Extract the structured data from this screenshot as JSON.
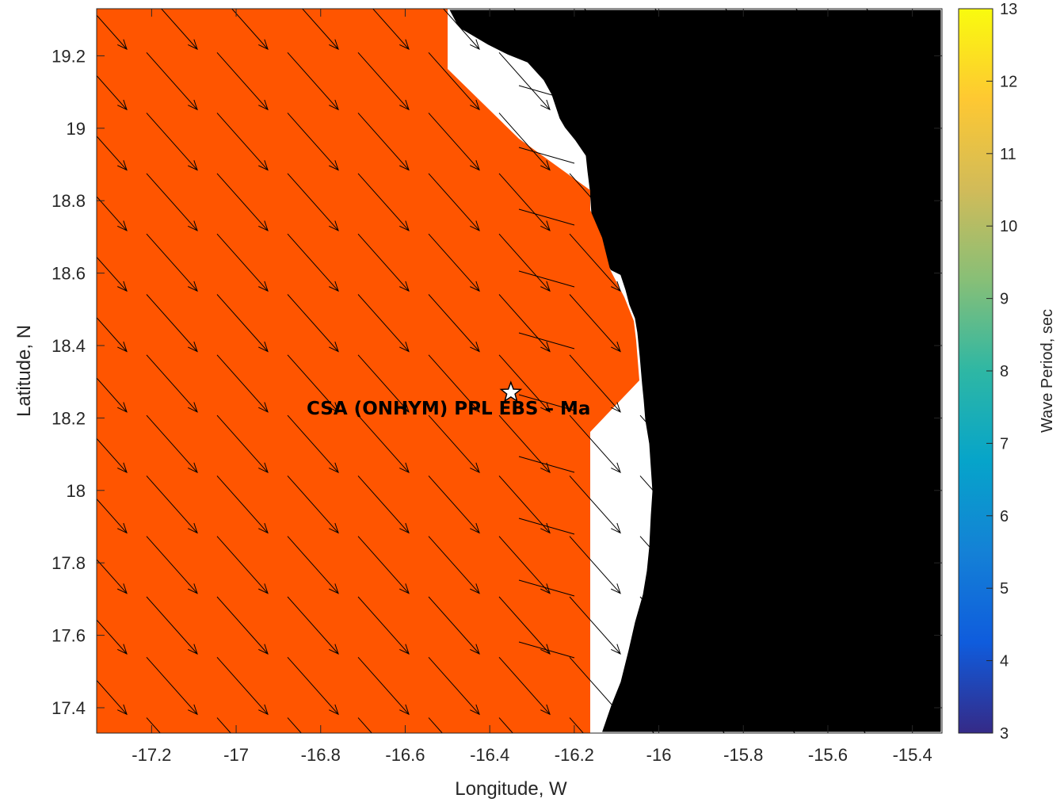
{
  "map": {
    "xlabel": "Longitude, W",
    "ylabel": "Latitude, N",
    "xlim": [
      -17.33,
      -15.33
    ],
    "ylim": [
      17.33,
      19.33
    ],
    "x_ticks": [
      "-17.2",
      "-17",
      "-16.8",
      "-16.6",
      "-16.4",
      "-16.2",
      "-16",
      "-15.8",
      "-15.6",
      "-15.4"
    ],
    "y_ticks": [
      "17.4",
      "17.6",
      "17.8",
      "18",
      "18.2",
      "18.4",
      "18.6",
      "18.8",
      "19",
      "19.2"
    ],
    "site": {
      "label": "CSA (ONHYM) PPL EBS – Ma",
      "lon": -16.35,
      "lat": 18.27
    },
    "colors": {
      "wave_fill": "#ff5500",
      "land": "#000000",
      "coastline": "#ffffff",
      "arrows": "#000000"
    },
    "arrow_grid": {
      "spacing_deg": 0.167,
      "direction": "southeast"
    }
  },
  "colorbar": {
    "label": "Wave Period, sec",
    "ticks": [
      "3",
      "4",
      "5",
      "6",
      "7",
      "8",
      "9",
      "10",
      "11",
      "12",
      "13"
    ],
    "range": [
      3,
      13
    ],
    "colormap": "parula"
  }
}
